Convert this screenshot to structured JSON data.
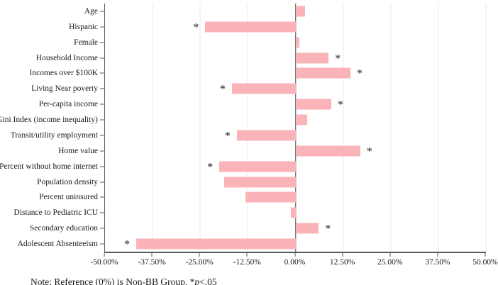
{
  "chart_data": {
    "type": "bar",
    "orientation": "horizontal",
    "title": "",
    "xlabel": "",
    "ylabel": "",
    "xlim": [
      -50,
      50
    ],
    "grid": true,
    "bar_color": "#FAB4B9",
    "zero_line_color": "#4a4a4a",
    "gridline_color": "#e9e9e9",
    "significance_marker": "*",
    "x_tick_labels": [
      "-50.00%",
      "-37.50%",
      "-25.00%",
      "-12.50%",
      "0.00%",
      "12.50%",
      "25.00%",
      "37.50%",
      "50.00%"
    ],
    "categories": [
      "Age",
      "Hispanic",
      "Female",
      "Household Income",
      "Incomes over $100K",
      "Living Near poverty",
      "Per-capita income",
      "Gini Index (income inequality)",
      "Transit/utility employment",
      "Home value",
      "Percent without home internet",
      "Population density",
      "Percent uninsured",
      "Distance to Pediatric ICU",
      "Secondary education",
      "Adolescent Absenteeism"
    ],
    "values": [
      2.5,
      -23.7,
      1.1,
      8.7,
      14.4,
      -16.7,
      9.4,
      3.1,
      -15.4,
      17.0,
      -20.0,
      -18.7,
      -13.1,
      -1.2,
      6.1,
      -41.8
    ],
    "significant": [
      false,
      true,
      false,
      true,
      true,
      true,
      true,
      false,
      true,
      true,
      true,
      false,
      false,
      false,
      true,
      true
    ]
  },
  "note": {
    "prefix": "Note: Reference (0%) is Non-BB Group. *",
    "italic_term": "p",
    "suffix": "<.05"
  }
}
